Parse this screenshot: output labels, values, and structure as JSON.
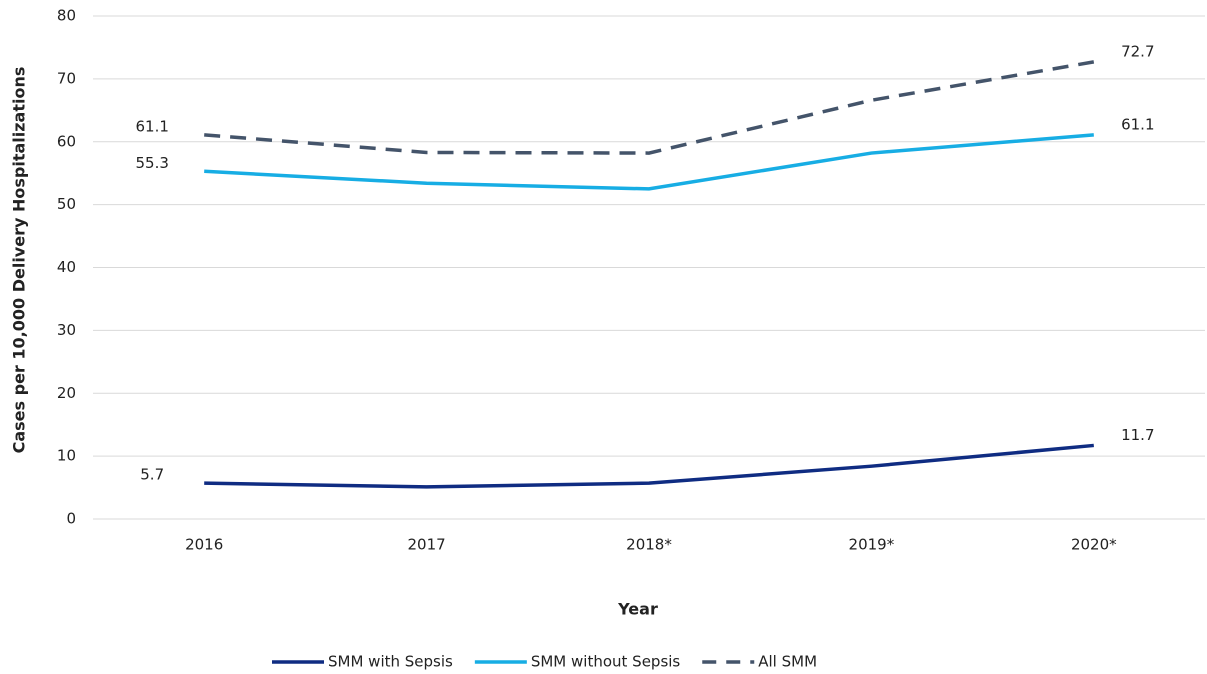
{
  "chart_data": {
    "type": "line",
    "x_label": "Year",
    "y_label": "Cases per 10,000 Delivery Hospitalizations",
    "categories": [
      "2016",
      "2017",
      "2018*",
      "2019*",
      "2020*"
    ],
    "series": [
      {
        "name": "SMM with Sepsis",
        "color": "#0f2c82",
        "style": "solid",
        "values": [
          5.7,
          5.1,
          5.7,
          8.4,
          11.7
        ]
      },
      {
        "name": "SMM without Sepsis",
        "color": "#17ade4",
        "style": "solid",
        "values": [
          55.3,
          53.4,
          52.5,
          58.2,
          61.1
        ]
      },
      {
        "name": "All SMM",
        "color": "#44546a",
        "style": "dashed",
        "values": [
          61.1,
          58.3,
          58.2,
          66.6,
          72.7
        ]
      }
    ],
    "ylim": [
      0,
      80
    ],
    "yticks": [
      0,
      10,
      20,
      30,
      40,
      50,
      60,
      70,
      80
    ],
    "grid": true
  }
}
